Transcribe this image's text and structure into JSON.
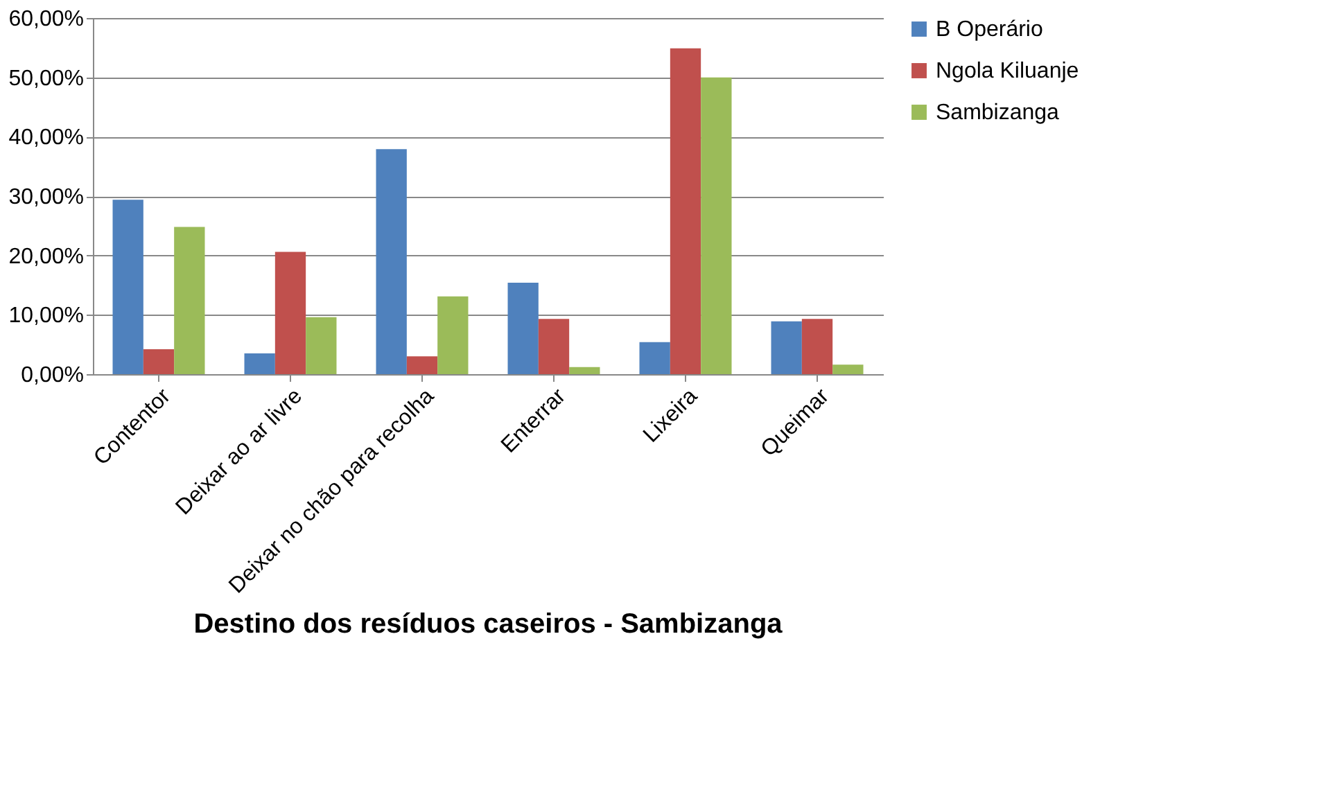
{
  "chart_data": {
    "type": "bar",
    "title": "Destino dos resíduos caseiros - Sambizanga",
    "categories": [
      "Contentor",
      "Deixar ao ar livre",
      "Deixar no chão para recolha",
      "Enterrar",
      "Lixeira",
      "Queimar"
    ],
    "series": [
      {
        "name": "B Operário",
        "color": "#4f81bd",
        "values": [
          29.4,
          3.5,
          37.9,
          15.4,
          5.4,
          8.9
        ]
      },
      {
        "name": "Ngola Kiluanje",
        "color": "#c0504d",
        "values": [
          4.2,
          20.6,
          3.0,
          9.3,
          54.9,
          9.3
        ]
      },
      {
        "name": "Sambizanga",
        "color": "#9bbb59",
        "values": [
          24.8,
          9.6,
          13.1,
          1.2,
          50.0,
          1.6
        ]
      }
    ],
    "ylim": [
      0,
      60
    ],
    "yticks": [
      {
        "value": 0,
        "label": "0,00%"
      },
      {
        "value": 10,
        "label": "10,00%"
      },
      {
        "value": 20,
        "label": "20,00%"
      },
      {
        "value": 30,
        "label": "30,00%"
      },
      {
        "value": 40,
        "label": "40,00%"
      },
      {
        "value": 50,
        "label": "50,00%"
      },
      {
        "value": 60,
        "label": "60,00%"
      }
    ],
    "grid": "y",
    "legend": "right"
  }
}
